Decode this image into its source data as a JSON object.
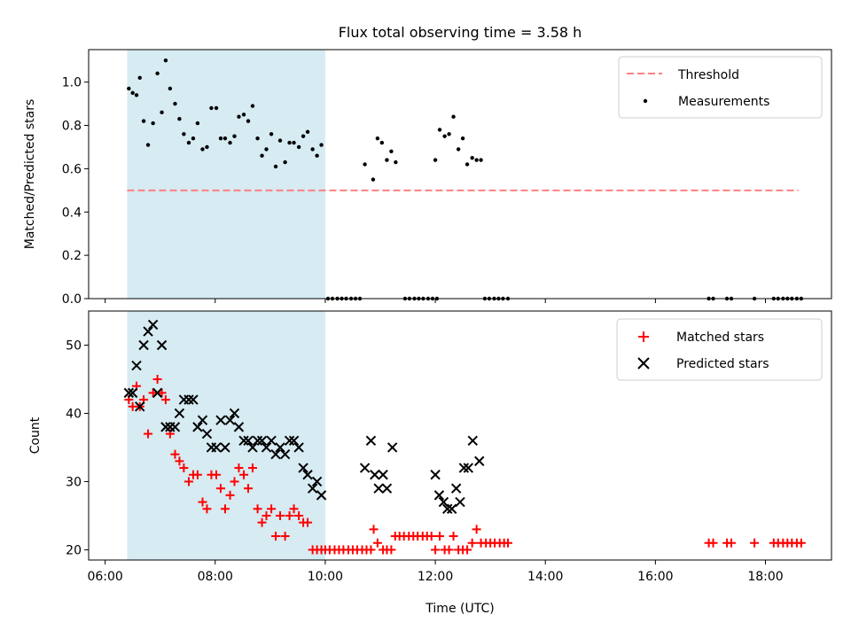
{
  "chart_data": [
    {
      "type": "scatter",
      "panel": "top",
      "title": "Flux total observing time = 3.58 h",
      "ylabel": "Matched/Predicted stars",
      "xlabel": "",
      "x_unit": "hours UTC",
      "xlim": [
        5.7,
        19.2
      ],
      "ylim": [
        0.0,
        1.15
      ],
      "grid": false,
      "yticks": [
        0.0,
        0.2,
        0.4,
        0.6,
        0.8,
        1.0
      ],
      "ytick_labels": [
        "0.0",
        "0.2",
        "0.4",
        "0.6",
        "0.8",
        "1.0"
      ],
      "legend_position": "top-right",
      "shaded_span": {
        "x_start": 6.4,
        "x_end": 10.0,
        "color": "#add8e6"
      },
      "threshold": {
        "label": "Threshold",
        "value": 0.5,
        "x_start": 6.4,
        "x_end": 18.6,
        "color": "#ff7f7f",
        "style": "dashed"
      },
      "series": [
        {
          "name": "Measurements",
          "color": "#000000",
          "marker": "dot",
          "points": [
            [
              6.43,
              0.97
            ],
            [
              6.5,
              0.95
            ],
            [
              6.57,
              0.94
            ],
            [
              6.63,
              1.02
            ],
            [
              6.7,
              0.82
            ],
            [
              6.78,
              0.71
            ],
            [
              6.87,
              0.81
            ],
            [
              6.95,
              1.04
            ],
            [
              7.03,
              0.86
            ],
            [
              7.1,
              1.1
            ],
            [
              7.18,
              0.97
            ],
            [
              7.27,
              0.9
            ],
            [
              7.35,
              0.83
            ],
            [
              7.43,
              0.76
            ],
            [
              7.52,
              0.72
            ],
            [
              7.6,
              0.74
            ],
            [
              7.68,
              0.81
            ],
            [
              7.77,
              0.69
            ],
            [
              7.85,
              0.7
            ],
            [
              7.93,
              0.88
            ],
            [
              8.02,
              0.88
            ],
            [
              8.1,
              0.74
            ],
            [
              8.18,
              0.74
            ],
            [
              8.27,
              0.72
            ],
            [
              8.35,
              0.75
            ],
            [
              8.43,
              0.84
            ],
            [
              8.52,
              0.85
            ],
            [
              8.6,
              0.82
            ],
            [
              8.68,
              0.89
            ],
            [
              8.77,
              0.74
            ],
            [
              8.85,
              0.66
            ],
            [
              8.93,
              0.69
            ],
            [
              9.02,
              0.76
            ],
            [
              9.1,
              0.61
            ],
            [
              9.18,
              0.73
            ],
            [
              9.27,
              0.63
            ],
            [
              9.35,
              0.72
            ],
            [
              9.43,
              0.72
            ],
            [
              9.52,
              0.7
            ],
            [
              9.6,
              0.75
            ],
            [
              9.68,
              0.77
            ],
            [
              9.77,
              0.69
            ],
            [
              9.85,
              0.66
            ],
            [
              9.93,
              0.71
            ],
            [
              10.05,
              0.0
            ],
            [
              10.13,
              0.0
            ],
            [
              10.22,
              0.0
            ],
            [
              10.3,
              0.0
            ],
            [
              10.38,
              0.0
            ],
            [
              10.47,
              0.0
            ],
            [
              10.55,
              0.0
            ],
            [
              10.63,
              0.0
            ],
            [
              10.72,
              0.62
            ],
            [
              10.87,
              0.55
            ],
            [
              10.95,
              0.74
            ],
            [
              11.03,
              0.72
            ],
            [
              11.12,
              0.64
            ],
            [
              11.2,
              0.68
            ],
            [
              11.28,
              0.63
            ],
            [
              11.45,
              0.0
            ],
            [
              11.53,
              0.0
            ],
            [
              11.62,
              0.0
            ],
            [
              11.7,
              0.0
            ],
            [
              11.78,
              0.0
            ],
            [
              11.87,
              0.0
            ],
            [
              11.95,
              0.0
            ],
            [
              12.03,
              0.0
            ],
            [
              12.0,
              0.64
            ],
            [
              12.08,
              0.78
            ],
            [
              12.17,
              0.75
            ],
            [
              12.25,
              0.76
            ],
            [
              12.33,
              0.84
            ],
            [
              12.42,
              0.69
            ],
            [
              12.5,
              0.74
            ],
            [
              12.58,
              0.62
            ],
            [
              12.67,
              0.65
            ],
            [
              12.75,
              0.64
            ],
            [
              12.83,
              0.64
            ],
            [
              12.9,
              0.0
            ],
            [
              12.98,
              0.0
            ],
            [
              13.07,
              0.0
            ],
            [
              13.15,
              0.0
            ],
            [
              13.23,
              0.0
            ],
            [
              13.32,
              0.0
            ],
            [
              16.97,
              0.0
            ],
            [
              17.05,
              0.0
            ],
            [
              17.3,
              0.0
            ],
            [
              17.38,
              0.0
            ],
            [
              17.8,
              0.0
            ],
            [
              18.15,
              0.0
            ],
            [
              18.23,
              0.0
            ],
            [
              18.32,
              0.0
            ],
            [
              18.4,
              0.0
            ],
            [
              18.48,
              0.0
            ],
            [
              18.57,
              0.0
            ],
            [
              18.65,
              0.0
            ]
          ]
        }
      ]
    },
    {
      "type": "scatter",
      "panel": "bottom",
      "title": "",
      "xlabel": "Time (UTC)",
      "ylabel": "Count",
      "x_unit": "hours UTC",
      "xlim": [
        5.7,
        19.2
      ],
      "ylim": [
        18.5,
        55
      ],
      "grid": false,
      "xticks": [
        6,
        8,
        10,
        12,
        14,
        16,
        18
      ],
      "xtick_labels": [
        "06:00",
        "08:00",
        "10:00",
        "12:00",
        "14:00",
        "16:00",
        "18:00"
      ],
      "yticks": [
        20,
        30,
        40,
        50
      ],
      "ytick_labels": [
        "20",
        "30",
        "40",
        "50"
      ],
      "legend_position": "top-right",
      "shaded_span": {
        "x_start": 6.4,
        "x_end": 10.0,
        "color": "#add8e6"
      },
      "series": [
        {
          "name": "Matched stars",
          "color": "#ff0000",
          "marker": "plus",
          "points": [
            [
              6.43,
              42
            ],
            [
              6.5,
              41
            ],
            [
              6.57,
              44
            ],
            [
              6.63,
              41
            ],
            [
              6.7,
              42
            ],
            [
              6.78,
              37
            ],
            [
              6.87,
              43
            ],
            [
              6.95,
              45
            ],
            [
              7.03,
              43
            ],
            [
              7.1,
              42
            ],
            [
              7.18,
              37
            ],
            [
              7.27,
              34
            ],
            [
              7.35,
              33
            ],
            [
              7.43,
              32
            ],
            [
              7.52,
              30
            ],
            [
              7.6,
              31
            ],
            [
              7.68,
              31
            ],
            [
              7.77,
              27
            ],
            [
              7.85,
              26
            ],
            [
              7.93,
              31
            ],
            [
              8.02,
              31
            ],
            [
              8.1,
              29
            ],
            [
              8.18,
              26
            ],
            [
              8.27,
              28
            ],
            [
              8.35,
              30
            ],
            [
              8.43,
              32
            ],
            [
              8.52,
              31
            ],
            [
              8.6,
              29
            ],
            [
              8.68,
              32
            ],
            [
              8.77,
              26
            ],
            [
              8.85,
              24
            ],
            [
              8.93,
              25
            ],
            [
              9.02,
              26
            ],
            [
              9.1,
              22
            ],
            [
              9.18,
              25
            ],
            [
              9.27,
              22
            ],
            [
              9.35,
              25
            ],
            [
              9.43,
              26
            ],
            [
              9.52,
              25
            ],
            [
              9.6,
              24
            ],
            [
              9.68,
              24
            ],
            [
              9.77,
              20
            ],
            [
              9.85,
              20
            ],
            [
              9.93,
              20
            ],
            [
              10.0,
              20
            ],
            [
              10.08,
              20
            ],
            [
              10.17,
              20
            ],
            [
              10.25,
              20
            ],
            [
              10.33,
              20
            ],
            [
              10.42,
              20
            ],
            [
              10.5,
              20
            ],
            [
              10.58,
              20
            ],
            [
              10.67,
              20
            ],
            [
              10.75,
              20
            ],
            [
              10.83,
              20
            ],
            [
              10.88,
              23
            ],
            [
              10.95,
              21
            ],
            [
              11.05,
              20
            ],
            [
              11.12,
              20
            ],
            [
              11.2,
              20
            ],
            [
              11.27,
              22
            ],
            [
              11.35,
              22
            ],
            [
              11.43,
              22
            ],
            [
              11.52,
              22
            ],
            [
              11.6,
              22
            ],
            [
              11.68,
              22
            ],
            [
              11.77,
              22
            ],
            [
              11.85,
              22
            ],
            [
              11.93,
              22
            ],
            [
              12.0,
              20
            ],
            [
              12.08,
              22
            ],
            [
              12.17,
              20
            ],
            [
              12.25,
              20
            ],
            [
              12.33,
              22
            ],
            [
              12.42,
              20
            ],
            [
              12.5,
              20
            ],
            [
              12.58,
              20
            ],
            [
              12.67,
              21
            ],
            [
              12.75,
              23
            ],
            [
              12.83,
              21
            ],
            [
              12.92,
              21
            ],
            [
              13.0,
              21
            ],
            [
              13.08,
              21
            ],
            [
              13.17,
              21
            ],
            [
              13.25,
              21
            ],
            [
              13.32,
              21
            ],
            [
              16.97,
              21
            ],
            [
              17.05,
              21
            ],
            [
              17.3,
              21
            ],
            [
              17.38,
              21
            ],
            [
              17.8,
              21
            ],
            [
              18.15,
              21
            ],
            [
              18.23,
              21
            ],
            [
              18.32,
              21
            ],
            [
              18.4,
              21
            ],
            [
              18.48,
              21
            ],
            [
              18.57,
              21
            ],
            [
              18.65,
              21
            ]
          ]
        },
        {
          "name": "Predicted stars",
          "color": "#000000",
          "marker": "x",
          "points": [
            [
              6.43,
              43
            ],
            [
              6.5,
              43
            ],
            [
              6.57,
              47
            ],
            [
              6.63,
              41
            ],
            [
              6.7,
              50
            ],
            [
              6.78,
              52
            ],
            [
              6.87,
              53
            ],
            [
              6.95,
              43
            ],
            [
              7.03,
              50
            ],
            [
              7.1,
              38
            ],
            [
              7.18,
              38
            ],
            [
              7.27,
              38
            ],
            [
              7.35,
              40
            ],
            [
              7.43,
              42
            ],
            [
              7.52,
              42
            ],
            [
              7.6,
              42
            ],
            [
              7.68,
              38
            ],
            [
              7.77,
              39
            ],
            [
              7.85,
              37
            ],
            [
              7.93,
              35
            ],
            [
              8.02,
              35
            ],
            [
              8.1,
              39
            ],
            [
              8.18,
              35
            ],
            [
              8.27,
              39
            ],
            [
              8.35,
              40
            ],
            [
              8.43,
              38
            ],
            [
              8.52,
              36
            ],
            [
              8.6,
              36
            ],
            [
              8.68,
              35
            ],
            [
              8.77,
              36
            ],
            [
              8.85,
              36
            ],
            [
              8.93,
              35
            ],
            [
              9.02,
              36
            ],
            [
              9.1,
              34
            ],
            [
              9.18,
              35
            ],
            [
              9.27,
              34
            ],
            [
              9.35,
              36
            ],
            [
              9.43,
              36
            ],
            [
              9.52,
              35
            ],
            [
              9.6,
              32
            ],
            [
              9.68,
              31
            ],
            [
              9.77,
              29
            ],
            [
              9.85,
              30
            ],
            [
              9.93,
              28
            ],
            [
              10.72,
              32
            ],
            [
              10.83,
              36
            ],
            [
              10.9,
              31
            ],
            [
              10.97,
              29
            ],
            [
              11.05,
              31
            ],
            [
              11.12,
              29
            ],
            [
              11.22,
              35
            ],
            [
              12.0,
              31
            ],
            [
              12.07,
              28
            ],
            [
              12.15,
              27
            ],
            [
              12.22,
              26
            ],
            [
              12.3,
              26
            ],
            [
              12.38,
              29
            ],
            [
              12.45,
              27
            ],
            [
              12.52,
              32
            ],
            [
              12.6,
              32
            ],
            [
              12.68,
              36
            ],
            [
              12.8,
              33
            ]
          ]
        }
      ]
    }
  ]
}
